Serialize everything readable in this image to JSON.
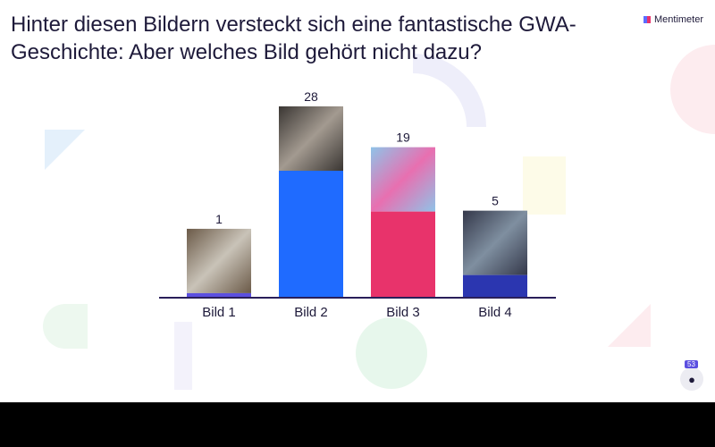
{
  "title": "Hinter diesen Bildern versteckt sich eine fantastische GWA-Geschichte: Aber welches Bild gehört nicht dazu?",
  "brand": "Mentimeter",
  "audience_count": "53",
  "chart_data": {
    "type": "bar",
    "categories": [
      "Bild 1",
      "Bild 2",
      "Bild 3",
      "Bild 4"
    ],
    "values": [
      1,
      28,
      19,
      5
    ],
    "colors": [
      "#5b4fe0",
      "#1f6bff",
      "#e8336b",
      "#2b36b0"
    ],
    "title": "",
    "xlabel": "",
    "ylabel": "",
    "ylim": [
      0,
      28
    ],
    "grid": false
  }
}
